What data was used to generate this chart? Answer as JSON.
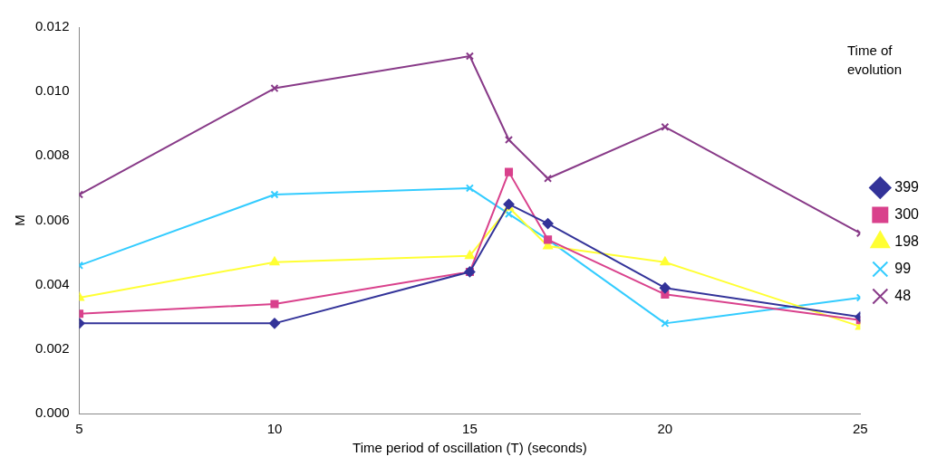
{
  "chart_data": {
    "type": "line",
    "xlabel": "Time period of oscillation (T) (seconds)",
    "ylabel": "M",
    "legend_title": "Time of evolution",
    "legend": "right",
    "grid": false,
    "x": [
      5,
      10,
      15,
      16,
      17,
      20,
      25
    ],
    "xlim": [
      5,
      25
    ],
    "xticks": [
      5,
      10,
      15,
      20,
      25
    ],
    "ylim": [
      0,
      0.012
    ],
    "yticks": [
      {
        "value": 0,
        "label": "0.000"
      },
      {
        "value": 0.002,
        "label": "0.002"
      },
      {
        "value": 0.004,
        "label": "0.004"
      },
      {
        "value": 0.006,
        "label": "0.006"
      },
      {
        "value": 0.008,
        "label": "0.008"
      },
      {
        "value": 0.01,
        "label": "0.010"
      },
      {
        "value": 0.012,
        "label": "0.012"
      }
    ],
    "series": [
      {
        "name": "399",
        "color": "#333399",
        "marker": "diamond",
        "values": [
          0.0028,
          0.0028,
          0.0044,
          0.0065,
          0.0059,
          0.0039,
          0.003
        ]
      },
      {
        "name": "300",
        "color": "#d9418c",
        "marker": "square",
        "values": [
          0.0031,
          0.0034,
          0.0044,
          0.0075,
          0.0054,
          0.0037,
          0.0029
        ]
      },
      {
        "name": "198",
        "color": "#ffff33",
        "marker": "triangle",
        "values": [
          0.0036,
          0.0047,
          0.0049,
          0.0064,
          0.0052,
          0.0047,
          0.0027
        ]
      },
      {
        "name": "99",
        "color": "#33ccff",
        "marker": "cross",
        "values": [
          0.0046,
          0.0068,
          0.007,
          0.0062,
          0.0054,
          0.0028,
          0.0036
        ]
      },
      {
        "name": "48",
        "color": "#883a88",
        "marker": "cross",
        "values": [
          0.0068,
          0.0101,
          0.0111,
          0.0085,
          0.0073,
          0.0089,
          0.0056
        ]
      }
    ]
  }
}
